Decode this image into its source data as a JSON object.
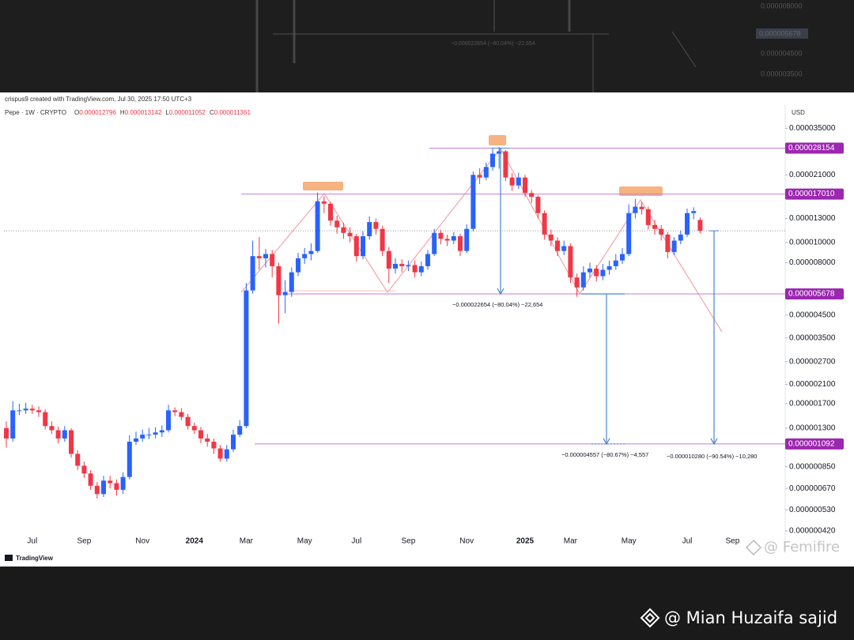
{
  "header": {
    "credit": "crispus9 created with TradingView.com, Jul 30, 2025 17:50 UTC+3"
  },
  "backdrop": {
    "labels": [
      "0.000008000",
      "0.000004500",
      "0.000003500"
    ],
    "badge": "0.000005678",
    "note": "−0.000022654 (−80.04%) −22,654"
  },
  "chart_data": {
    "type": "candlestick",
    "title": "Pepe · 1W · CRYPTO",
    "ohlc_keys": [
      "O",
      "H",
      "L",
      "C"
    ],
    "y_label": "USD",
    "log_scale": true,
    "grid": false,
    "up_color": "#2962ff",
    "down_color": "#f23645",
    "level_color": "#9c27b0",
    "categories": [
      null,
      null,
      null,
      null,
      "Jul",
      null,
      null,
      null,
      null,
      null,
      null,
      null,
      "Sep",
      null,
      null,
      null,
      null,
      null,
      null,
      null,
      null,
      "Nov",
      null,
      null,
      null,
      null,
      null,
      null,
      null,
      "2024",
      null,
      null,
      null,
      null,
      null,
      null,
      null,
      "Mar",
      null,
      null,
      null,
      null,
      null,
      null,
      null,
      null,
      "May",
      null,
      null,
      null,
      null,
      null,
      null,
      null,
      "Jul",
      null,
      null,
      null,
      null,
      null,
      null,
      null,
      "Sep",
      null,
      null,
      null,
      null,
      null,
      null,
      null,
      null,
      "Nov",
      null,
      null,
      null,
      null,
      null,
      null,
      null,
      null,
      "2025",
      null,
      null,
      null,
      null,
      null,
      null,
      "Mar",
      null,
      null,
      null,
      null,
      null,
      null,
      null,
      null,
      "May",
      null,
      null,
      null,
      null,
      null,
      null,
      null,
      null,
      "Jul",
      null,
      null,
      null,
      null,
      null,
      null,
      "Sep"
    ],
    "open": [
      1.3e-06,
      1.16e-06,
      1.58e-06,
      1.58e-06,
      1.61e-06,
      1.58e-06,
      1.55e-06,
      1.33e-06,
      1.27e-06,
      1.16e-06,
      1.27e-06,
      9.8e-07,
      8.6e-07,
      7.9e-07,
      6.9e-07,
      6.3e-07,
      7.3e-07,
      7.1e-07,
      6.6e-07,
      7.6e-07,
      1.12e-06,
      1.16e-06,
      1.21e-06,
      1.21e-06,
      1.24e-06,
      1.27e-06,
      1.58e-06,
      1.55e-06,
      1.47e-06,
      1.33e-06,
      1.27e-06,
      1.16e-06,
      1.12e-06,
      1.04e-06,
      9.3e-07,
      1.03e-06,
      1.21e-06,
      1.33e-06,
      5.9e-06,
      8.6e-06,
      8.4e-06,
      8.8e-06,
      7.7e-06,
      5.6e-06,
      5.8e-06,
      7.2e-06,
      8.4e-06,
      8.8e-06,
      9.1e-06,
      1.57e-05,
      1.53e-05,
      1.27e-05,
      1.18e-05,
      1.11e-05,
      1.07e-05,
      8.6e-06,
      1.07e-05,
      1.25e-05,
      1.16e-05,
      9.1e-06,
      7.5e-06,
      7.9e-06,
      7.7e-06,
      7.8e-06,
      7.2e-06,
      7.7e-06,
      8.8e-06,
      1.11e-05,
      1.04e-05,
      1.02e-05,
      1.07e-05,
      9.1e-06,
      1.16e-05,
      2.1e-05,
      2.04e-05,
      2.29e-05,
      2.65e-05,
      2.72e-05,
      2.04e-05,
      1.87e-05,
      2.04e-05,
      1.72e-05,
      1.65e-05,
      1.38e-05,
      1.09e-05,
      1.02e-05,
      9.1e-06,
      9.6e-06,
      6.8e-06,
      6.1e-06,
      7.2e-06,
      7.5e-06,
      6.9e-06,
      7.4e-06,
      7.7e-06,
      8.2e-06,
      8.8e-06,
      1.38e-05,
      1.48e-05,
      1.44e-05,
      1.21e-05,
      1.16e-05,
      1.09e-05,
      9e-06,
      1.02e-05,
      1.09e-05,
      1.38e-05,
      1.2796e-05,
      null,
      null,
      null,
      null,
      null
    ],
    "high": [
      1.4e-06,
      1.75e-06,
      1.7e-06,
      1.72e-06,
      1.68e-06,
      1.65e-06,
      1.6e-06,
      1.4e-06,
      1.32e-06,
      1.33e-06,
      1.3e-06,
      1.02e-06,
      9e-07,
      8.2e-07,
      7.2e-07,
      7.7e-07,
      7.7e-07,
      7.4e-07,
      8e-07,
      1.2e-06,
      1.25e-06,
      1.28e-06,
      1.3e-06,
      1.31e-06,
      1.34e-06,
      1.68e-06,
      1.63e-06,
      1.62e-06,
      1.52e-06,
      1.38e-06,
      1.32e-06,
      1.22e-06,
      1.16e-06,
      1.08e-06,
      1.08e-06,
      1.28e-06,
      1.42e-06,
      6.4e-06,
      1.02e-05,
      1.06e-05,
      9.3e-06,
      9.2e-06,
      8e-06,
      6.6e-06,
      7.6e-06,
      8.9e-06,
      9.4e-06,
      9.9e-06,
      1.73e-05,
      1.66e-05,
      1.56e-05,
      1.34e-05,
      1.24e-05,
      1.18e-05,
      1.1e-05,
      1.13e-05,
      1.33e-05,
      1.3e-05,
      1.2e-05,
      9.5e-06,
      8.4e-06,
      8.3e-06,
      8.2e-06,
      8.2e-06,
      8.1e-06,
      9.2e-06,
      1.16e-05,
      1.15e-05,
      1.09e-05,
      1.12e-05,
      1.1e-05,
      1.22e-05,
      2.18e-05,
      2.26e-05,
      2.4e-05,
      2.8e-05,
      2.85e-05,
      2.76e-05,
      2.14e-05,
      2.15e-05,
      2.1e-05,
      1.78e-05,
      1.68e-05,
      1.42e-05,
      1.15e-05,
      1.06e-05,
      1.02e-05,
      9.9e-06,
      7.1e-06,
      7.7e-06,
      8e-06,
      7.8e-06,
      7.9e-06,
      8.2e-06,
      8.8e-06,
      9.4e-06,
      1.52e-05,
      1.61e-05,
      1.56e-05,
      1.48e-05,
      1.28e-05,
      1.21e-05,
      1.12e-05,
      1.06e-05,
      1.14e-05,
      1.45e-05,
      1.47e-05,
      1.3142e-05,
      null,
      null,
      null,
      null,
      null
    ],
    "low": [
      1.05e-06,
      1.12e-06,
      1.5e-06,
      1.52e-06,
      1.52e-06,
      1.47e-06,
      1.28e-06,
      1.22e-06,
      1.1e-06,
      1.12e-06,
      9.4e-07,
      8.2e-07,
      7.5e-07,
      6.6e-07,
      6e-07,
      6.1e-07,
      6.7e-07,
      6.2e-07,
      6.3e-07,
      7.4e-07,
      1.08e-06,
      1.12e-06,
      1.15e-06,
      1.16e-06,
      1.18e-06,
      1.24e-06,
      1.48e-06,
      1.42e-06,
      1.28e-06,
      1.22e-06,
      1.1e-06,
      1.06e-06,
      9.8e-07,
      9e-07,
      9e-07,
      1e-06,
      1.18e-06,
      1.3e-06,
      5.7e-06,
      7.4e-06,
      7.6e-06,
      6.8e-06,
      4.1e-06,
      4.6e-06,
      5.5e-06,
      6.9e-06,
      7.9e-06,
      8.2e-06,
      8.9e-06,
      1.38e-05,
      1.2e-05,
      1.1e-05,
      1.04e-05,
      1e-05,
      8.1e-06,
      8.3e-06,
      1.03e-05,
      1.09e-05,
      8.6e-06,
      6.4e-06,
      7.1e-06,
      7.2e-06,
      7.3e-06,
      6.8e-06,
      6.9e-06,
      7.4e-06,
      8.6e-06,
      9.8e-06,
      9.6e-06,
      9.8e-06,
      8.6e-06,
      8.9e-06,
      1.13e-05,
      1.9e-05,
      1.98e-05,
      2.2e-05,
      2.25e-05,
      1.96e-05,
      1.76e-05,
      1.8e-05,
      1.65e-05,
      1.54e-05,
      1.3e-05,
      1.03e-05,
      9.6e-06,
      8.6e-06,
      8.7e-06,
      6.4e-06,
      5.5e-06,
      5.9e-06,
      6.8e-06,
      6.5e-06,
      6.6e-06,
      7e-06,
      7.4e-06,
      7.9e-06,
      8.6e-06,
      1.3e-05,
      1.36e-05,
      1.15e-05,
      1.09e-05,
      1.02e-05,
      8.4e-06,
      8.7e-06,
      9.8e-06,
      1.06e-05,
      1.29e-05,
      1.1052e-05,
      null,
      null,
      null,
      null,
      null
    ],
    "close": [
      1.16e-06,
      1.58e-06,
      1.58e-06,
      1.61e-06,
      1.58e-06,
      1.55e-06,
      1.33e-06,
      1.27e-06,
      1.16e-06,
      1.27e-06,
      9.8e-07,
      8.6e-07,
      7.9e-07,
      6.9e-07,
      6.3e-07,
      7.3e-07,
      7.1e-07,
      6.6e-07,
      7.6e-07,
      1.12e-06,
      1.16e-06,
      1.21e-06,
      1.21e-06,
      1.24e-06,
      1.27e-06,
      1.58e-06,
      1.55e-06,
      1.47e-06,
      1.33e-06,
      1.27e-06,
      1.16e-06,
      1.12e-06,
      1.04e-06,
      9.3e-07,
      1.03e-06,
      1.21e-06,
      1.33e-06,
      5.9e-06,
      8.6e-06,
      8.4e-06,
      8.8e-06,
      7.7e-06,
      5.6e-06,
      5.8e-06,
      7.2e-06,
      8.4e-06,
      8.8e-06,
      9.1e-06,
      1.57e-05,
      1.53e-05,
      1.27e-05,
      1.18e-05,
      1.11e-05,
      1.07e-05,
      8.6e-06,
      1.07e-05,
      1.25e-05,
      1.16e-05,
      9.1e-06,
      7.5e-06,
      7.9e-06,
      7.7e-06,
      7.8e-06,
      7.2e-06,
      7.7e-06,
      8.8e-06,
      1.11e-05,
      1.04e-05,
      1.02e-05,
      1.07e-05,
      9.1e-06,
      1.16e-05,
      2.1e-05,
      2.04e-05,
      2.29e-05,
      2.65e-05,
      2.72e-05,
      2.04e-05,
      1.87e-05,
      2.04e-05,
      1.72e-05,
      1.65e-05,
      1.38e-05,
      1.09e-05,
      1.02e-05,
      9.1e-06,
      9.6e-06,
      6.8e-06,
      6.1e-06,
      7.2e-06,
      7.5e-06,
      6.9e-06,
      7.4e-06,
      7.7e-06,
      8.2e-06,
      8.8e-06,
      1.38e-05,
      1.48e-05,
      1.44e-05,
      1.21e-05,
      1.16e-05,
      1.09e-05,
      9e-06,
      1.02e-05,
      1.09e-05,
      1.38e-05,
      1.41e-05,
      1.1361e-05,
      null,
      null,
      null,
      null,
      null
    ],
    "ylim": [
      4.2e-07,
      3.9e-05
    ],
    "yticks": [
      {
        "value": 3.5e-05,
        "label": "0.000035000"
      },
      {
        "value": 2.1e-05,
        "label": "0.000021000"
      },
      {
        "value": 1.3e-05,
        "label": "0.000013000"
      },
      {
        "value": 1e-05,
        "label": "0.000010000"
      },
      {
        "value": 8e-06,
        "label": "0.000008000"
      },
      {
        "value": 4.5e-06,
        "label": "0.000004500"
      },
      {
        "value": 3.5e-06,
        "label": "0.000003500"
      },
      {
        "value": 2.7e-06,
        "label": "0.000002700"
      },
      {
        "value": 2.1e-06,
        "label": "0.000002100"
      },
      {
        "value": 1.7e-06,
        "label": "0.000001700"
      },
      {
        "value": 1.3e-06,
        "label": "0.000001300"
      },
      {
        "value": 8.5e-07,
        "label": "0.000000850"
      },
      {
        "value": 6.7e-07,
        "label": "0.000000670"
      },
      {
        "value": 5.3e-07,
        "label": "0.000000530"
      },
      {
        "value": 4.2e-07,
        "label": "0.000000420"
      }
    ],
    "levels": [
      {
        "value": 2.8154e-05
      },
      {
        "value": 1.701e-05,
        "label": "0.000017010"
      },
      {
        "value": 5.678e-06
      },
      {
        "value": 1.092e-06
      }
    ],
    "annotations": [
      "−0.000022654 (−80.04%) −22,654",
      "−0.000004557 (−80.67%) −4,557",
      "−0.000010280 (−90.54%) −10,280"
    ]
  },
  "watermarks": {
    "platform": "TradingView",
    "handle": "@ Femifire"
  },
  "footer": {
    "author": "@ Mian Huzaifa sajid"
  }
}
